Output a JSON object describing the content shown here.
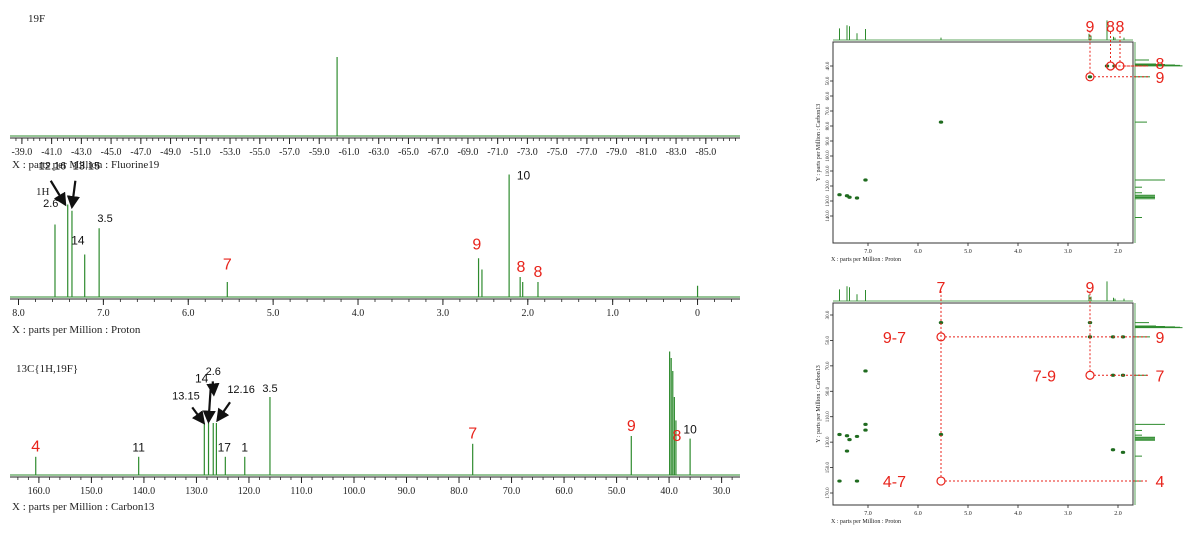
{
  "colors": {
    "spectrum": "#2e8b2e",
    "annotation_red": "#e8231b",
    "annotation_black": "#111111",
    "axis": "#222222",
    "box": "#333333"
  },
  "chart_data": [
    {
      "type": "line",
      "nucleus_label": "19F",
      "xlabel": "X : parts per Million : Fluorine19",
      "xlim": [
        -38.2,
        -87.3
      ],
      "ticks": [
        -39.0,
        -41.0,
        -43.0,
        -45.0,
        -47.0,
        -49.0,
        -51.0,
        -53.0,
        -55.0,
        -57.0,
        -59.0,
        -61.0,
        -63.0,
        -65.0,
        -67.0,
        -69.0,
        -71.0,
        -73.0,
        -75.0,
        -77.0,
        -79.0,
        -81.0,
        -83.0,
        -85.0
      ],
      "tick_labels": [
        "-39.0",
        "-41.0",
        "-43.0",
        "-45.0",
        "-47.0",
        "-49.0",
        "-51.0",
        "-53.0",
        "-55.0",
        "-57.0",
        "-59.0",
        "-61.0",
        "-63.0",
        "-65.0",
        "-67.0",
        "-69.0",
        "-71.0",
        "-73.0",
        "-75.0",
        "-77.0",
        "-79.0",
        "-81.0",
        "-83.0",
        "-85.0"
      ],
      "peaks": [
        {
          "ppm": -60.2,
          "height": 1.0
        }
      ],
      "annotations": []
    },
    {
      "type": "line",
      "nucleus_label": "1H",
      "xlabel": "X : parts per Million : Proton",
      "xlim": [
        8.1,
        -0.5
      ],
      "ticks": [
        8.0,
        7.0,
        6.0,
        5.0,
        4.0,
        3.0,
        2.0,
        1.0,
        0
      ],
      "tick_labels": [
        "8.0",
        "7.0",
        "6.0",
        "5.0",
        "4.0",
        "3.0",
        "2.0",
        "1.0",
        "0"
      ],
      "peaks": [
        {
          "ppm": 7.57,
          "height": 0.58
        },
        {
          "ppm": 7.42,
          "height": 0.74
        },
        {
          "ppm": 7.37,
          "height": 0.69
        },
        {
          "ppm": 7.22,
          "height": 0.34
        },
        {
          "ppm": 7.05,
          "height": 0.55
        },
        {
          "ppm": 5.54,
          "height": 0.12
        },
        {
          "ppm": 2.58,
          "height": 0.31
        },
        {
          "ppm": 2.54,
          "height": 0.22
        },
        {
          "ppm": 2.22,
          "height": 0.98
        },
        {
          "ppm": 2.09,
          "height": 0.16
        },
        {
          "ppm": 2.06,
          "height": 0.12
        },
        {
          "ppm": 1.88,
          "height": 0.12
        },
        {
          "ppm": 0.0,
          "height": 0.09
        }
      ],
      "annotations": [
        {
          "text": "2.6",
          "ppm": 7.62,
          "height": 0.72,
          "color": "black"
        },
        {
          "text": "12.16",
          "ppm": 7.6,
          "height": 1.02,
          "color": "black"
        },
        {
          "text": "13.15",
          "ppm": 7.2,
          "height": 1.02,
          "color": "black"
        },
        {
          "text": "14",
          "ppm": 7.3,
          "height": 0.42,
          "color": "black"
        },
        {
          "text": "3.5",
          "ppm": 6.98,
          "height": 0.6,
          "color": "black"
        },
        {
          "text": "7",
          "ppm": 5.54,
          "height": 0.22,
          "color": "red"
        },
        {
          "text": "9",
          "ppm": 2.6,
          "height": 0.38,
          "color": "red"
        },
        {
          "text": "10",
          "ppm": 2.05,
          "height": 0.94,
          "color": "black"
        },
        {
          "text": "8",
          "ppm": 2.08,
          "height": 0.2,
          "color": "red"
        },
        {
          "text": "8",
          "ppm": 1.88,
          "height": 0.16,
          "color": "red"
        }
      ],
      "arrows": [
        {
          "from_ppm": 7.62,
          "from_h": 0.93,
          "to_ppm": 7.45,
          "to_h": 0.74
        },
        {
          "from_ppm": 7.33,
          "from_h": 0.93,
          "to_ppm": 7.37,
          "to_h": 0.72
        }
      ]
    },
    {
      "type": "line",
      "nucleus_label": "13C{1H,19F}",
      "xlabel": "X : parts per Million : Carbon13",
      "xlim": [
        165.5,
        26.5
      ],
      "ticks": [
        160.0,
        150.0,
        140.0,
        130.0,
        120.0,
        110.0,
        100.0,
        90.0,
        80.0,
        70.0,
        60.0,
        50.0,
        40.0,
        30.0
      ],
      "tick_labels": [
        "160.0",
        "150.0",
        "140.0",
        "130.0",
        "120.0",
        "110.0",
        "100.0",
        "90.0",
        "80.0",
        "70.0",
        "60.0",
        "50.0",
        "40.0",
        "30.0"
      ],
      "peaks": [
        {
          "ppm": 160.6,
          "height": 0.14
        },
        {
          "ppm": 141.0,
          "height": 0.14
        },
        {
          "ppm": 128.5,
          "height": 0.4
        },
        {
          "ppm": 127.7,
          "height": 0.4
        },
        {
          "ppm": 126.8,
          "height": 0.4
        },
        {
          "ppm": 126.2,
          "height": 0.4
        },
        {
          "ppm": 124.5,
          "height": 0.14
        },
        {
          "ppm": 120.8,
          "height": 0.14
        },
        {
          "ppm": 116.0,
          "height": 0.6
        },
        {
          "ppm": 77.4,
          "height": 0.24
        },
        {
          "ppm": 47.2,
          "height": 0.3
        },
        {
          "ppm": 39.9,
          "height": 0.95
        },
        {
          "ppm": 39.6,
          "height": 0.9
        },
        {
          "ppm": 39.3,
          "height": 0.8
        },
        {
          "ppm": 39.0,
          "height": 0.6
        },
        {
          "ppm": 38.7,
          "height": 0.42
        },
        {
          "ppm": 36.0,
          "height": 0.28
        }
      ],
      "annotations": [
        {
          "text": "4",
          "ppm": 160.6,
          "height": 0.18,
          "color": "red"
        },
        {
          "text": "11",
          "ppm": 141.0,
          "height": 0.18,
          "color": "black"
        },
        {
          "text": "13.15",
          "ppm": 132.0,
          "height": 0.58,
          "color": "black"
        },
        {
          "text": "14",
          "ppm": 129.0,
          "height": 0.71,
          "color": "black"
        },
        {
          "text": "2.6",
          "ppm": 126.8,
          "height": 0.77,
          "color": "black"
        },
        {
          "text": "12.16",
          "ppm": 121.5,
          "height": 0.63,
          "color": "black"
        },
        {
          "text": "17",
          "ppm": 124.7,
          "height": 0.18,
          "color": "black"
        },
        {
          "text": "1",
          "ppm": 120.8,
          "height": 0.18,
          "color": "black"
        },
        {
          "text": "3.5",
          "ppm": 116.0,
          "height": 0.64,
          "color": "black"
        },
        {
          "text": "7",
          "ppm": 77.4,
          "height": 0.28,
          "color": "red"
        },
        {
          "text": "9",
          "ppm": 47.2,
          "height": 0.34,
          "color": "red"
        },
        {
          "text": "8",
          "ppm": 38.5,
          "height": 0.26,
          "color": "red"
        },
        {
          "text": "10",
          "ppm": 36.0,
          "height": 0.32,
          "color": "black"
        }
      ],
      "arrows": [
        {
          "from_ppm": 130.8,
          "from_h": 0.52,
          "to_ppm": 128.6,
          "to_h": 0.4
        },
        {
          "from_ppm": 127.3,
          "from_h": 0.66,
          "to_ppm": 127.7,
          "to_h": 0.41
        },
        {
          "from_ppm": 126.9,
          "from_h": 0.72,
          "to_ppm": 126.7,
          "to_h": 0.62
        },
        {
          "from_ppm": 123.6,
          "from_h": 0.56,
          "to_ppm": 126.0,
          "to_h": 0.42
        }
      ]
    },
    {
      "type": "scatter",
      "name": "2D correlation (top)",
      "xlabel": "X : parts per Million : Proton",
      "ylabel": "Y : parts per Million : Carbon13",
      "xlim": [
        7.7,
        1.7
      ],
      "ylim": [
        32.0,
        150.0
      ],
      "x_ticks": [
        7.0,
        6.0,
        5.0,
        4.0,
        3.0,
        2.0
      ],
      "x_tick_labels": [
        "7.0",
        "6.0",
        "5.0",
        "4.0",
        "3.0",
        "2.0"
      ],
      "y_ticks": [
        40.0,
        50.0,
        60.0,
        70.0,
        80.0,
        90.0,
        100.0,
        110.0,
        120.0,
        130.0,
        140.0
      ],
      "y_tick_labels": [
        "40.0",
        "50.0",
        "60.0",
        "70.0",
        "80.0",
        "90.0",
        "100.0",
        "110.0",
        "120.0",
        "130.0",
        "140.0"
      ],
      "points": [
        {
          "x": 2.22,
          "y": 40.0
        },
        {
          "x": 2.07,
          "y": 40.0
        },
        {
          "x": 2.56,
          "y": 47.2
        },
        {
          "x": 5.54,
          "y": 77.4
        },
        {
          "x": 7.05,
          "y": 116.0
        },
        {
          "x": 7.42,
          "y": 126.5
        },
        {
          "x": 7.37,
          "y": 127.5
        },
        {
          "x": 7.57,
          "y": 125.8
        },
        {
          "x": 7.22,
          "y": 128.0
        }
      ],
      "annotations": [
        {
          "text": "9",
          "x": 2.56,
          "y": 28.0,
          "color": "red"
        },
        {
          "text": "8",
          "x": 2.15,
          "y": 28.0,
          "color": "red"
        },
        {
          "text": "8",
          "x": 1.96,
          "y": 28.0,
          "color": "red"
        },
        {
          "text": "8",
          "side": "right",
          "y": 38.0,
          "color": "red"
        },
        {
          "text": "9",
          "side": "right",
          "y": 47.2,
          "color": "red"
        }
      ],
      "circles": [
        {
          "x": 2.56,
          "y": 47.2
        },
        {
          "x": 2.15,
          "y": 40.0
        },
        {
          "x": 1.96,
          "y": 40.0
        }
      ]
    },
    {
      "type": "scatter",
      "name": "2D correlation (bottom)",
      "xlabel": "X : parts per Million : Proton",
      "ylabel": "Y : parts per Million : Carbon13",
      "xlim": [
        7.7,
        1.7
      ],
      "ylim": [
        30.0,
        170.0
      ],
      "x_ticks": [
        7.0,
        6.0,
        5.0,
        4.0,
        3.0,
        2.0
      ],
      "x_tick_labels": [
        "7.0",
        "6.0",
        "5.0",
        "4.0",
        "3.0",
        "2.0"
      ],
      "y_ticks": [
        30.0,
        50.0,
        70.0,
        90.0,
        110.0,
        130.0,
        150.0,
        170.0
      ],
      "y_tick_labels": [
        "30.0",
        "50.0",
        "70.0",
        "90.0",
        "110.0",
        "130.0",
        "150.0",
        "170.0"
      ],
      "points": [
        {
          "x": 2.56,
          "y": 36.0
        },
        {
          "x": 2.56,
          "y": 47.2
        },
        {
          "x": 2.1,
          "y": 47.2
        },
        {
          "x": 1.9,
          "y": 47.2
        },
        {
          "x": 5.54,
          "y": 36.0
        },
        {
          "x": 2.1,
          "y": 77.4
        },
        {
          "x": 1.9,
          "y": 77.4
        },
        {
          "x": 7.05,
          "y": 74.0
        },
        {
          "x": 7.57,
          "y": 124.0
        },
        {
          "x": 7.42,
          "y": 125.0
        },
        {
          "x": 7.37,
          "y": 128.0
        },
        {
          "x": 7.22,
          "y": 125.5
        },
        {
          "x": 7.05,
          "y": 120.5
        },
        {
          "x": 7.05,
          "y": 116.0
        },
        {
          "x": 7.42,
          "y": 137.0
        },
        {
          "x": 5.54,
          "y": 124.0
        },
        {
          "x": 2.1,
          "y": 136.0
        },
        {
          "x": 1.9,
          "y": 138.0
        },
        {
          "x": 7.57,
          "y": 160.6
        },
        {
          "x": 7.22,
          "y": 160.6
        }
      ],
      "annotations": [
        {
          "text": "7",
          "x": 5.54,
          "y": 16.0,
          "color": "red"
        },
        {
          "text": "9",
          "x": 2.56,
          "y": 16.0,
          "color": "red"
        },
        {
          "text": "9-7",
          "x": 6.2,
          "y": 47.2,
          "color": "red"
        },
        {
          "text": "7-9",
          "x": 3.2,
          "y": 77.4,
          "color": "red"
        },
        {
          "text": "4-7",
          "x": 6.2,
          "y": 160.6,
          "color": "red"
        },
        {
          "text": "9",
          "side": "right",
          "y": 47.2,
          "color": "red"
        },
        {
          "text": "7",
          "side": "right",
          "y": 77.4,
          "color": "red"
        },
        {
          "text": "4",
          "side": "right",
          "y": 160.6,
          "color": "red"
        }
      ],
      "circles": [
        {
          "x": 5.54,
          "y": 47.2
        },
        {
          "x": 2.56,
          "y": 77.4
        },
        {
          "x": 5.54,
          "y": 160.6
        }
      ]
    }
  ]
}
